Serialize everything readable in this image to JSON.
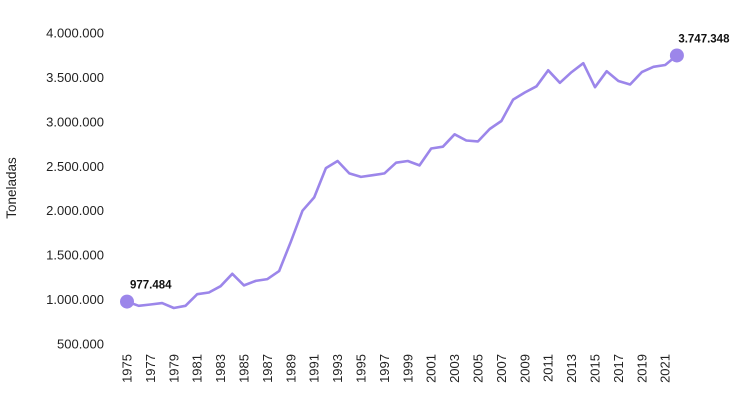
{
  "chart_data": {
    "type": "line",
    "title": "",
    "xlabel": "",
    "ylabel": "Toneladas",
    "unit": "Toneladas",
    "legend": [],
    "grid": false,
    "line_color": "#9c86ea",
    "marker_color": "#9c86ea",
    "ylim": [
      500000,
      4000000
    ],
    "x": [
      1975,
      1976,
      1977,
      1978,
      1979,
      1980,
      1981,
      1982,
      1983,
      1984,
      1985,
      1986,
      1987,
      1988,
      1989,
      1990,
      1991,
      1992,
      1993,
      1994,
      1995,
      1996,
      1997,
      1998,
      1999,
      2000,
      2001,
      2002,
      2003,
      2004,
      2005,
      2006,
      2007,
      2008,
      2009,
      2010,
      2011,
      2012,
      2013,
      2014,
      2015,
      2016,
      2017,
      2018,
      2019,
      2020,
      2021,
      2022
    ],
    "values": [
      977484,
      930000,
      945000,
      960000,
      905000,
      930000,
      1060000,
      1080000,
      1150000,
      1290000,
      1160000,
      1210000,
      1230000,
      1320000,
      1650000,
      2000000,
      2150000,
      2480000,
      2560000,
      2420000,
      2380000,
      2400000,
      2420000,
      2540000,
      2560000,
      2510000,
      2700000,
      2720000,
      2860000,
      2790000,
      2780000,
      2920000,
      3010000,
      3250000,
      3330000,
      3400000,
      3580000,
      3440000,
      3560000,
      3660000,
      3390000,
      3570000,
      3460000,
      3420000,
      3560000,
      3620000,
      3640000,
      3747348
    ],
    "y_ticks": [
      {
        "value": 4000000,
        "label": "4.000.000"
      },
      {
        "value": 3500000,
        "label": "3.500.000"
      },
      {
        "value": 3000000,
        "label": "3.000.000"
      },
      {
        "value": 2500000,
        "label": "2.500.000"
      },
      {
        "value": 2000000,
        "label": "2.000.000"
      },
      {
        "value": 1500000,
        "label": "1.500.000"
      },
      {
        "value": 1000000,
        "label": "1.000.000"
      },
      {
        "value": 500000,
        "label": "500.000"
      }
    ],
    "x_tick_years": [
      1975,
      1977,
      1979,
      1981,
      1983,
      1985,
      1987,
      1989,
      1991,
      1993,
      1995,
      1997,
      1999,
      2001,
      2003,
      2005,
      2007,
      2009,
      2011,
      2013,
      2015,
      2017,
      2019,
      2021
    ],
    "annotations": [
      {
        "x": 1975,
        "value": 977484,
        "label": "977.484"
      },
      {
        "x": 2022,
        "value": 3747348,
        "label": "3.747.348"
      }
    ]
  }
}
